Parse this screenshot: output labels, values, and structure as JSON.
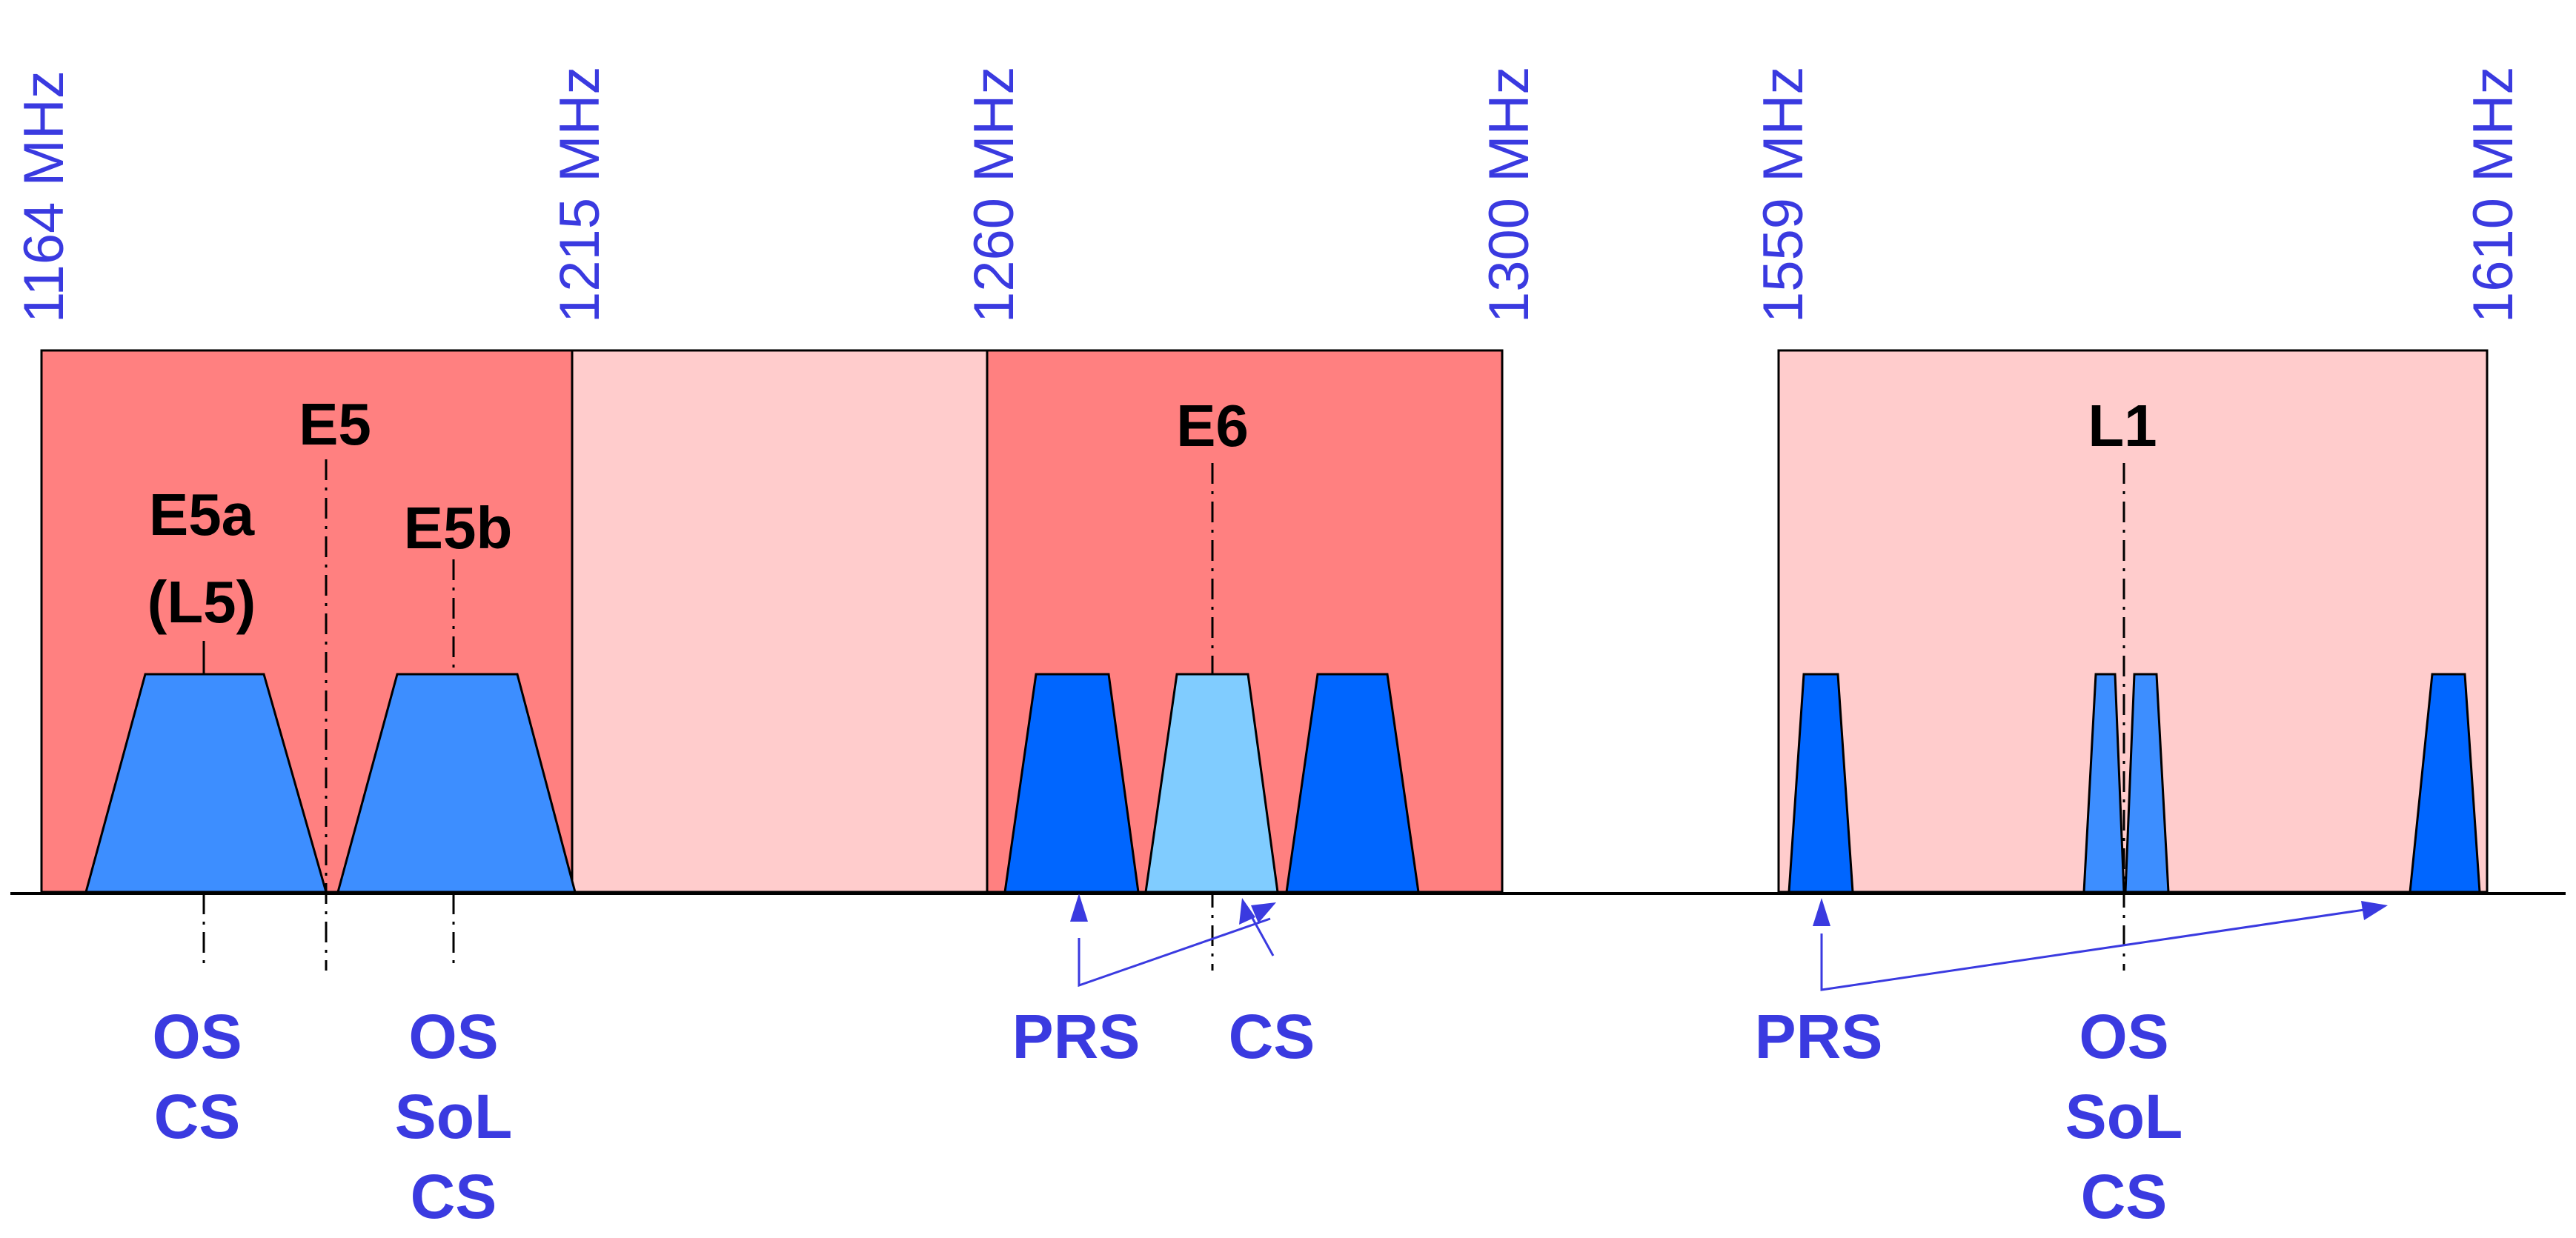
{
  "frequencies": {
    "f1164": "1164 MHz",
    "f1215": "1215 MHz",
    "f1260": "1260 MHz",
    "f1300": "1300 MHz",
    "f1559": "1559 MHz",
    "f1610": "1610 MHz"
  },
  "bands": {
    "e5": "E5",
    "e5a_line1": "E5a",
    "e5a_line2": "(L5)",
    "e5b": "E5b",
    "e6": "E6",
    "l1": "L1"
  },
  "services": {
    "e5a_os": "OS",
    "e5a_cs": "CS",
    "e5b_os": "OS",
    "e5b_sol": "SoL",
    "e5b_cs": "CS",
    "e6_prs": "PRS",
    "e6_cs": "CS",
    "l1_prs": "PRS",
    "l1_os": "OS",
    "l1_sol": "SoL",
    "l1_cs": "CS"
  },
  "colors": {
    "band_dark": "#ff8080",
    "band_light": "#ffcccc",
    "signal_dark": "#0066ff",
    "signal_mid": "#3d8eff",
    "signal_light": "#80ccff",
    "label_blue": "#3a3ae0"
  }
}
